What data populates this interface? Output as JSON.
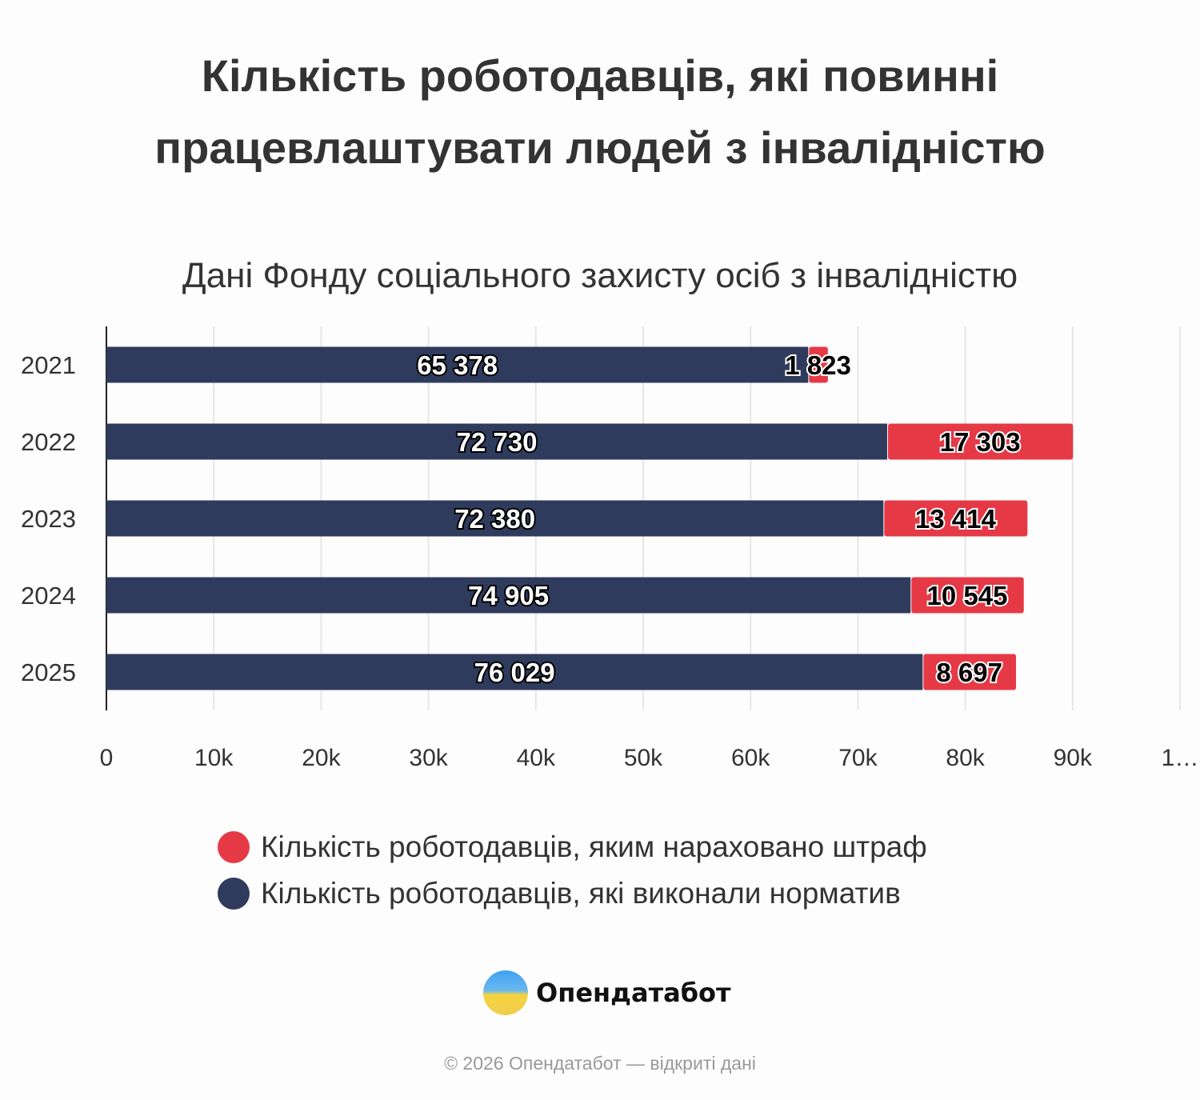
{
  "chart_data": {
    "type": "bar",
    "orientation": "horizontal",
    "stacked": true,
    "title": "Кількість роботодавців, які повинні працевлаштувати людей з інвалідністю",
    "subtitle": "Дані Фонду соціального захисту осіб з інвалідністю",
    "categories": [
      "2021",
      "2022",
      "2023",
      "2024",
      "2025"
    ],
    "series": [
      {
        "name": "Кількість роботодавців, які виконали норматив",
        "color": "#2f3b5c",
        "values": [
          65378,
          72730,
          72380,
          74905,
          76029
        ],
        "labels": [
          "65 378",
          "72 730",
          "72 380",
          "74 905",
          "76 029"
        ]
      },
      {
        "name": "Кількість роботодавців, яким нараховано штраф",
        "color": "#e63946",
        "values": [
          1823,
          17303,
          13414,
          10545,
          8697
        ],
        "labels": [
          "1 823",
          "17 303",
          "13 414",
          "10 545",
          "8 697"
        ]
      }
    ],
    "xlim": [
      0,
      100000
    ],
    "xticks": [
      "0",
      "10k",
      "20k",
      "30k",
      "40k",
      "50k",
      "60k",
      "70k",
      "80k",
      "90k",
      "1…"
    ],
    "grid": true,
    "legend_position": "bottom"
  },
  "legend": [
    {
      "label": "Кількість роботодавців, яким нараховано штраф",
      "color": "#e63946"
    },
    {
      "label": "Кількість роботодавців, які виконали норматив",
      "color": "#2f3b5c"
    }
  ],
  "logo": {
    "text": "Опендатабот"
  },
  "footer": "© 2026 Опендатабот — відкриті дані"
}
